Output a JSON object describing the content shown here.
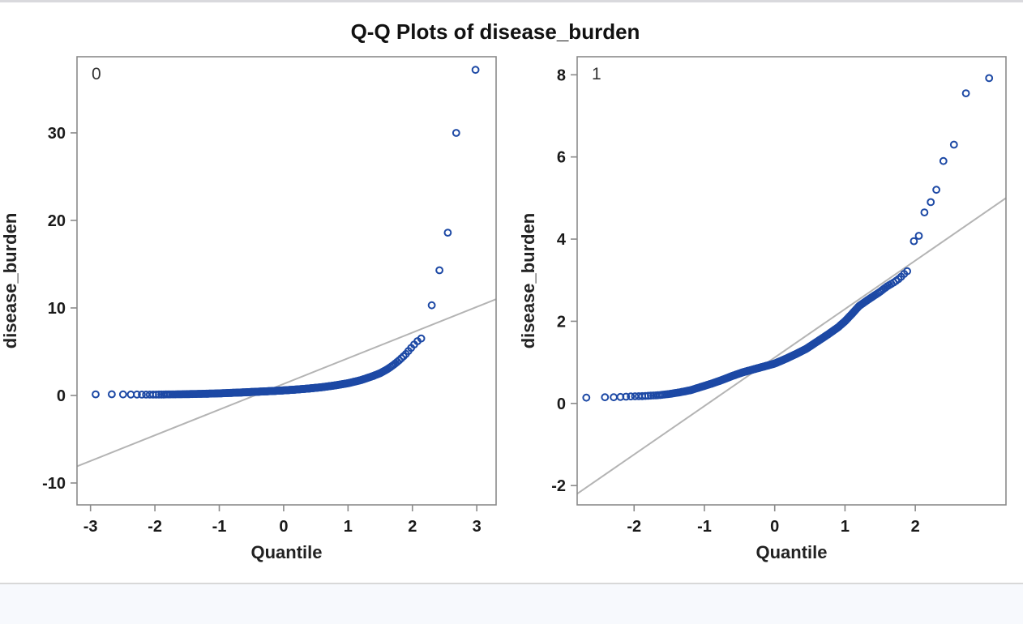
{
  "title": "Q-Q Plots of disease_burden",
  "style": {
    "marker_color": "#1d49a5",
    "axis_color": "#8a8a8a",
    "tick_text_color": "#1a1a1a",
    "label_text_color": "#222222",
    "group_label_color": "#333333",
    "ref_line_color": "#b4b4b4",
    "top_strip_color": "#d9d9dd",
    "divider_color": "#d8d8d8",
    "bottom_panel_color": "#f7f9fd",
    "plot_background": "#ffffff"
  },
  "chart_data": [
    {
      "type": "scatter",
      "subtype": "qq-plot",
      "group_label": "0",
      "xlabel": "Quantile",
      "ylabel": "disease_burden",
      "x_ticks": [
        -3,
        -2,
        -1,
        0,
        1,
        2,
        3
      ],
      "y_ticks": [
        -10,
        0,
        10,
        20,
        30
      ],
      "xlim": [
        -3.21,
        3.3
      ],
      "ylim": [
        -12.5,
        38.7
      ],
      "grid": false,
      "ref_line": {
        "x1": -3.21,
        "y1": -8.1,
        "x2": 3.3,
        "y2": 11.0
      },
      "n_points": 400,
      "band_domain": [
        -2.72,
        2.17
      ],
      "band_anchors": [
        [
          -2.72,
          0.14
        ],
        [
          -2.45,
          0.12
        ],
        [
          -2.2,
          0.1
        ],
        [
          -2.0,
          0.1
        ],
        [
          -1.8,
          0.12
        ],
        [
          -1.6,
          0.14
        ],
        [
          -1.4,
          0.17
        ],
        [
          -1.2,
          0.2
        ],
        [
          -1.0,
          0.24
        ],
        [
          -0.8,
          0.3
        ],
        [
          -0.6,
          0.36
        ],
        [
          -0.4,
          0.43
        ],
        [
          -0.2,
          0.5
        ],
        [
          0.0,
          0.58
        ],
        [
          0.2,
          0.68
        ],
        [
          0.4,
          0.8
        ],
        [
          0.6,
          0.95
        ],
        [
          0.8,
          1.15
        ],
        [
          1.0,
          1.4
        ],
        [
          1.2,
          1.75
        ],
        [
          1.4,
          2.25
        ],
        [
          1.5,
          2.55
        ],
        [
          1.6,
          2.95
        ],
        [
          1.7,
          3.45
        ],
        [
          1.8,
          4.05
        ],
        [
          1.9,
          4.75
        ],
        [
          2.0,
          5.6
        ],
        [
          2.05,
          6.0
        ],
        [
          2.1,
          6.35
        ],
        [
          2.17,
          6.65
        ]
      ],
      "outliers": [
        [
          -2.92,
          0.13
        ],
        [
          2.3,
          10.3
        ],
        [
          2.42,
          14.3
        ],
        [
          2.55,
          18.6
        ],
        [
          2.68,
          30.0
        ],
        [
          2.98,
          37.2
        ]
      ]
    },
    {
      "type": "scatter",
      "subtype": "qq-plot",
      "group_label": "1",
      "xlabel": "Quantile",
      "ylabel": "disease_burden",
      "x_ticks": [
        -2,
        -1,
        0,
        1,
        2
      ],
      "y_ticks": [
        -2,
        0,
        2,
        4,
        6,
        8
      ],
      "xlim": [
        -2.81,
        3.29
      ],
      "ylim": [
        -2.47,
        8.44
      ],
      "grid": false,
      "ref_line": {
        "x1": -2.81,
        "y1": -2.2,
        "x2": 3.29,
        "y2": 5.0
      },
      "n_points": 320,
      "band_domain": [
        -2.45,
        1.93
      ],
      "band_anchors": [
        [
          -2.45,
          0.15
        ],
        [
          -2.27,
          0.15
        ],
        [
          -2.05,
          0.17
        ],
        [
          -1.85,
          0.18
        ],
        [
          -1.65,
          0.2
        ],
        [
          -1.5,
          0.23
        ],
        [
          -1.35,
          0.27
        ],
        [
          -1.2,
          0.32
        ],
        [
          -1.05,
          0.4
        ],
        [
          -0.9,
          0.48
        ],
        [
          -0.75,
          0.57
        ],
        [
          -0.6,
          0.67
        ],
        [
          -0.45,
          0.76
        ],
        [
          -0.3,
          0.83
        ],
        [
          -0.15,
          0.9
        ],
        [
          0.0,
          0.97
        ],
        [
          0.15,
          1.08
        ],
        [
          0.3,
          1.2
        ],
        [
          0.45,
          1.33
        ],
        [
          0.6,
          1.5
        ],
        [
          0.75,
          1.67
        ],
        [
          0.9,
          1.85
        ],
        [
          1.0,
          2.0
        ],
        [
          1.1,
          2.18
        ],
        [
          1.2,
          2.37
        ],
        [
          1.35,
          2.55
        ],
        [
          1.5,
          2.72
        ],
        [
          1.6,
          2.85
        ],
        [
          1.7,
          2.95
        ],
        [
          1.78,
          3.05
        ],
        [
          1.85,
          3.17
        ],
        [
          1.93,
          3.28
        ]
      ],
      "outliers": [
        [
          -2.68,
          0.14
        ],
        [
          1.98,
          3.95
        ],
        [
          2.05,
          4.08
        ],
        [
          2.13,
          4.65
        ],
        [
          2.22,
          4.9
        ],
        [
          2.3,
          5.2
        ],
        [
          2.4,
          5.9
        ],
        [
          2.55,
          6.3
        ],
        [
          2.72,
          7.55
        ],
        [
          3.05,
          7.92
        ]
      ]
    }
  ]
}
